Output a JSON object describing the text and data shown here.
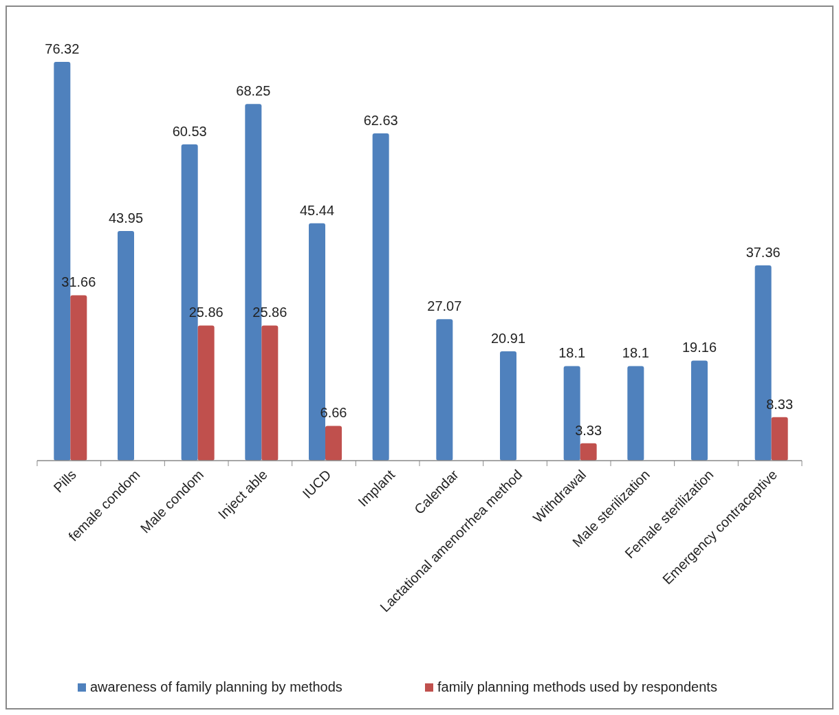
{
  "chart_data": {
    "type": "bar",
    "categories": [
      "Pills",
      "female condom",
      "Male condom",
      "Inject able",
      "IUCD",
      "Implant",
      "Calendar",
      "Lactational amenorrhea method",
      "Withdrawal",
      "Male sterilization",
      "Female sterilization",
      "Emergency contraceptive"
    ],
    "series": [
      {
        "name": "awareness of family planning by methods",
        "color": "#4f81bd",
        "values": [
          76.32,
          43.95,
          60.53,
          68.25,
          45.44,
          62.63,
          27.07,
          20.91,
          18.1,
          18.1,
          19.16,
          37.36
        ]
      },
      {
        "name": "family planning methods used by respondents",
        "color": "#c0504d",
        "values": [
          31.66,
          null,
          25.86,
          25.86,
          6.66,
          null,
          null,
          null,
          3.33,
          null,
          null,
          8.33
        ]
      }
    ],
    "data_labels": true,
    "legend": "bottom",
    "grid": false
  }
}
